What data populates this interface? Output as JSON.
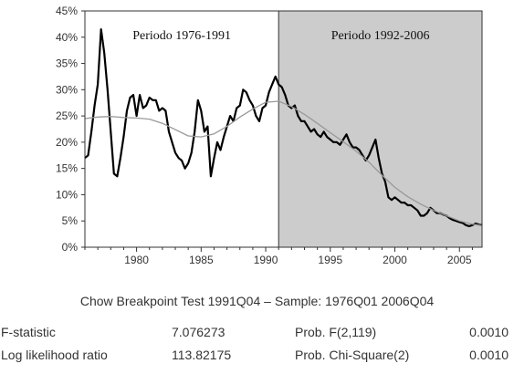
{
  "chart_data": {
    "type": "line",
    "xlim": [
      1976,
      2006.75
    ],
    "ylim": [
      0,
      45
    ],
    "x_ticks": [
      1980,
      1985,
      1990,
      1995,
      2000,
      2005
    ],
    "y_ticks": [
      "0%",
      "5%",
      "10%",
      "15%",
      "20%",
      "25%",
      "30%",
      "35%",
      "40%",
      "45%"
    ],
    "regions": [
      {
        "label": "Periodo 1976-1991",
        "from": 1976,
        "to": 1991,
        "fill": "#ffffff"
      },
      {
        "label": "Periodo 1992-2006",
        "from": 1991,
        "to": 2006.75,
        "fill": "#cccccc"
      }
    ],
    "series": [
      {
        "color": "#000000",
        "points": [
          [
            1976.0,
            17
          ],
          [
            1976.25,
            17.5
          ],
          [
            1976.5,
            22
          ],
          [
            1976.75,
            27
          ],
          [
            1977.0,
            31
          ],
          [
            1977.25,
            41.5
          ],
          [
            1977.5,
            37
          ],
          [
            1977.75,
            30
          ],
          [
            1978.0,
            22
          ],
          [
            1978.25,
            14
          ],
          [
            1978.5,
            13.5
          ],
          [
            1978.75,
            17
          ],
          [
            1979.0,
            21
          ],
          [
            1979.25,
            26
          ],
          [
            1979.5,
            28.5
          ],
          [
            1979.75,
            29
          ],
          [
            1980.0,
            25
          ],
          [
            1980.25,
            29
          ],
          [
            1980.5,
            26.5
          ],
          [
            1980.75,
            27
          ],
          [
            1981.0,
            28.5
          ],
          [
            1981.25,
            28
          ],
          [
            1981.5,
            28
          ],
          [
            1981.75,
            26
          ],
          [
            1982.0,
            26.5
          ],
          [
            1982.25,
            26
          ],
          [
            1982.5,
            22
          ],
          [
            1982.75,
            20
          ],
          [
            1983.0,
            18
          ],
          [
            1983.25,
            17
          ],
          [
            1983.5,
            16.5
          ],
          [
            1983.75,
            15
          ],
          [
            1984.0,
            16
          ],
          [
            1984.25,
            18
          ],
          [
            1984.5,
            22
          ],
          [
            1984.75,
            28
          ],
          [
            1985.0,
            26
          ],
          [
            1985.25,
            22
          ],
          [
            1985.5,
            23
          ],
          [
            1985.75,
            13.5
          ],
          [
            1986.0,
            17
          ],
          [
            1986.25,
            20
          ],
          [
            1986.5,
            18.5
          ],
          [
            1986.75,
            21
          ],
          [
            1987.0,
            23
          ],
          [
            1987.25,
            25
          ],
          [
            1987.5,
            24
          ],
          [
            1987.75,
            26.5
          ],
          [
            1988.0,
            27
          ],
          [
            1988.25,
            30
          ],
          [
            1988.5,
            29.5
          ],
          [
            1988.75,
            28
          ],
          [
            1989.0,
            27
          ],
          [
            1989.25,
            25
          ],
          [
            1989.5,
            24
          ],
          [
            1989.75,
            26.5
          ],
          [
            1990.0,
            27
          ],
          [
            1990.25,
            29.5
          ],
          [
            1990.5,
            31
          ],
          [
            1990.75,
            32.5
          ],
          [
            1991.0,
            31
          ],
          [
            1991.25,
            30.5
          ],
          [
            1991.5,
            29
          ],
          [
            1991.75,
            27
          ],
          [
            1992.0,
            26.5
          ],
          [
            1992.25,
            27
          ],
          [
            1992.5,
            25
          ],
          [
            1992.75,
            24
          ],
          [
            1993.0,
            24
          ],
          [
            1993.25,
            23
          ],
          [
            1993.5,
            22
          ],
          [
            1993.75,
            22.5
          ],
          [
            1994.0,
            21.5
          ],
          [
            1994.25,
            21
          ],
          [
            1994.5,
            22
          ],
          [
            1994.75,
            21
          ],
          [
            1995.0,
            20.5
          ],
          [
            1995.25,
            20
          ],
          [
            1995.5,
            20
          ],
          [
            1995.75,
            19.5
          ],
          [
            1996.0,
            20.5
          ],
          [
            1996.25,
            21.5
          ],
          [
            1996.5,
            20
          ],
          [
            1996.75,
            19
          ],
          [
            1997.0,
            19
          ],
          [
            1997.25,
            18.5
          ],
          [
            1997.5,
            17.5
          ],
          [
            1997.75,
            16.5
          ],
          [
            1998.0,
            17.5
          ],
          [
            1998.25,
            19
          ],
          [
            1998.5,
            20.5
          ],
          [
            1998.75,
            17
          ],
          [
            1999.0,
            14
          ],
          [
            1999.25,
            12.5
          ],
          [
            1999.5,
            9.5
          ],
          [
            1999.75,
            9
          ],
          [
            2000.0,
            9.5
          ],
          [
            2000.25,
            9
          ],
          [
            2000.5,
            8.5
          ],
          [
            2000.75,
            8.5
          ],
          [
            2001.0,
            8
          ],
          [
            2001.25,
            8
          ],
          [
            2001.5,
            7.5
          ],
          [
            2001.75,
            7
          ],
          [
            2002.0,
            6
          ],
          [
            2002.25,
            6
          ],
          [
            2002.5,
            6.5
          ],
          [
            2002.75,
            7.5
          ],
          [
            2003.0,
            7
          ],
          [
            2003.25,
            6.5
          ],
          [
            2003.5,
            6.5
          ],
          [
            2003.75,
            6.2
          ],
          [
            2004.0,
            6
          ],
          [
            2004.25,
            5.5
          ],
          [
            2004.5,
            5.2
          ],
          [
            2004.75,
            5
          ],
          [
            2005.0,
            4.8
          ],
          [
            2005.25,
            4.6
          ],
          [
            2005.5,
            4.2
          ],
          [
            2005.75,
            4.0
          ],
          [
            2006.0,
            4.2
          ],
          [
            2006.25,
            4.5
          ],
          [
            2006.5,
            4.3
          ],
          [
            2006.75,
            4.2
          ]
        ]
      },
      {
        "color": "#999999",
        "points": [
          [
            1976.0,
            24.5
          ],
          [
            1977.0,
            24.8
          ],
          [
            1978.0,
            24.9
          ],
          [
            1979.0,
            24.7
          ],
          [
            1980.0,
            24.6
          ],
          [
            1981.0,
            24.4
          ],
          [
            1982.0,
            23.6
          ],
          [
            1983.0,
            22.4
          ],
          [
            1984.0,
            21.2
          ],
          [
            1985.0,
            21.0
          ],
          [
            1986.0,
            21.6
          ],
          [
            1987.0,
            23.0
          ],
          [
            1988.0,
            24.8
          ],
          [
            1989.0,
            26.3
          ],
          [
            1990.0,
            27.6
          ],
          [
            1991.0,
            27.8
          ],
          [
            1992.0,
            26.8
          ],
          [
            1993.0,
            25.3
          ],
          [
            1994.0,
            23.6
          ],
          [
            1995.0,
            21.8
          ],
          [
            1996.0,
            20.1
          ],
          [
            1997.0,
            18.3
          ],
          [
            1998.0,
            16.2
          ],
          [
            1999.0,
            13.7
          ],
          [
            2000.0,
            11.4
          ],
          [
            2001.0,
            9.6
          ],
          [
            2002.0,
            8.2
          ],
          [
            2003.0,
            7.0
          ],
          [
            2004.0,
            6.0
          ],
          [
            2005.0,
            5.0
          ],
          [
            2006.0,
            4.4
          ],
          [
            2006.75,
            4.1
          ]
        ]
      }
    ]
  },
  "stats": {
    "title": "Chow Breakpoint Test 1991Q04 – Sample: 1976Q01 2006Q04",
    "rows": [
      {
        "label": "F-statistic",
        "value": "7.076273",
        "prob_label": "Prob. F(2,119)",
        "prob_value": "0.0010"
      },
      {
        "label": "Log likelihood ratio",
        "value": "113.82175",
        "prob_label": "Prob. Chi-Square(2)",
        "prob_value": "0.0010"
      }
    ]
  }
}
